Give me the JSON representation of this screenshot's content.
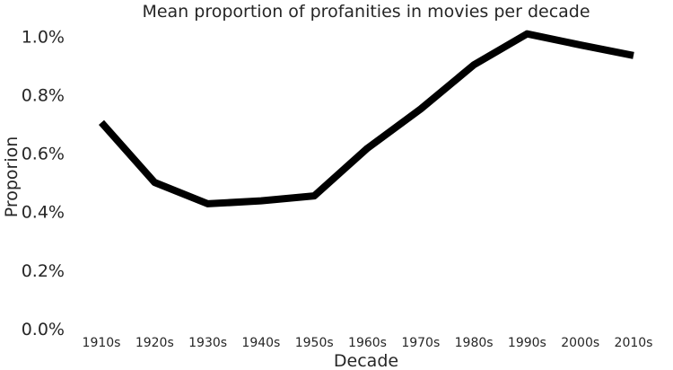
{
  "chart_data": {
    "type": "line",
    "title": "Mean proportion of profanities in movies per decade",
    "xlabel": "Decade",
    "ylabel": "Proporion",
    "categories": [
      "1910s",
      "1920s",
      "1930s",
      "1940s",
      "1950s",
      "1960s",
      "1970s",
      "1980s",
      "1990s",
      "2000s",
      "2010s"
    ],
    "series": [
      {
        "values": [
          0.705,
          0.5,
          0.427,
          0.437,
          0.454,
          0.617,
          0.751,
          0.902,
          1.008,
          0.97,
          0.934
        ]
      }
    ],
    "ylim": [
      0.0,
      1.05
    ],
    "yticks": [
      {
        "value": 0.0,
        "label": "0.0%"
      },
      {
        "value": 0.2,
        "label": "0.2%"
      },
      {
        "value": 0.4,
        "label": "0.4%"
      },
      {
        "value": 0.6,
        "label": "0.6%"
      },
      {
        "value": 0.8,
        "label": "0.8%"
      },
      {
        "value": 1.0,
        "label": "1.0%"
      }
    ],
    "grid": false,
    "colors": {
      "line": "#000000",
      "text": "#262626",
      "background": "#ffffff"
    }
  }
}
